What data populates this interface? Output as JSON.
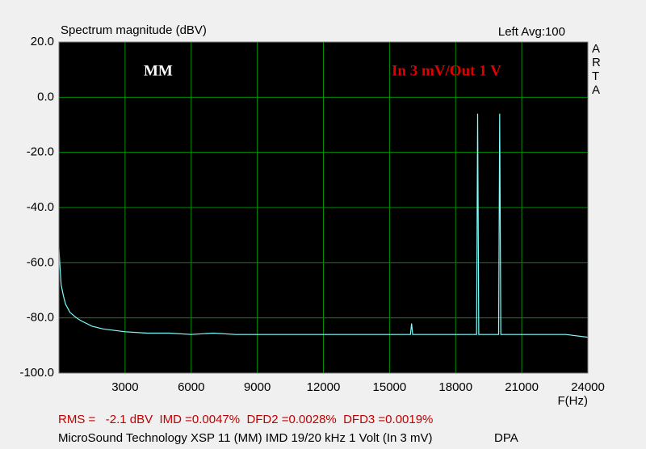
{
  "chart_data": {
    "type": "line",
    "title": "Spectrum magnitude (dBV)",
    "channel_label": "Left  Avg:100",
    "side_label": "ARTA",
    "annotations": [
      "MM",
      "In 3 mV/Out 1 V"
    ],
    "xlabel": "F(Hz)",
    "footer": [
      "RMS =   -2.1 dBV  IMD =0.0047%  DFD2 =0.0028%  DFD3 =0.0019%",
      "MicroSound Technology XSP 11 (MM) IMD 19/20 kHz 1 Volt (In 3 mV)",
      "DPA"
    ],
    "x": [
      0,
      50,
      100,
      200,
      300,
      500,
      800,
      1000,
      1500,
      2000,
      3000,
      4000,
      5000,
      6000,
      7000,
      8000,
      9000,
      10000,
      11000,
      12000,
      13000,
      14000,
      15000,
      15950,
      16000,
      16050,
      17000,
      18000,
      18950,
      19000,
      19050,
      19500,
      19950,
      20000,
      20050,
      21000,
      22000,
      23000,
      24000
    ],
    "series": [
      {
        "color": "#80ffff",
        "values": [
          -55,
          -62,
          -68,
          -72,
          -75,
          -78,
          -80,
          -81,
          -83,
          -84,
          -85,
          -85.5,
          -85.5,
          -86,
          -85.5,
          -86,
          -86,
          -86,
          -86,
          -86,
          -86,
          -86,
          -86,
          -86,
          -82,
          -86,
          -86,
          -86,
          -86,
          -6,
          -86,
          -86,
          -86,
          -6,
          -86,
          -86,
          -86,
          -86,
          -87
        ]
      }
    ],
    "xlim": [
      0,
      24000
    ],
    "xticks": [
      3000,
      6000,
      9000,
      12000,
      15000,
      18000,
      21000,
      24000
    ],
    "ylim": [
      -100,
      20
    ],
    "yticks": [
      {
        "value": 20,
        "label": "20.0"
      },
      {
        "value": 0,
        "label": "0.0"
      },
      {
        "value": -20,
        "label": "-20.0"
      },
      {
        "value": -40,
        "label": "-40.0"
      },
      {
        "value": -60,
        "label": "-60.0"
      },
      {
        "value": -80,
        "label": "-80.0"
      },
      {
        "value": -100,
        "label": "-100.0"
      }
    ],
    "grid": true,
    "grid_color": "#009000",
    "plot_background": "#000000"
  }
}
